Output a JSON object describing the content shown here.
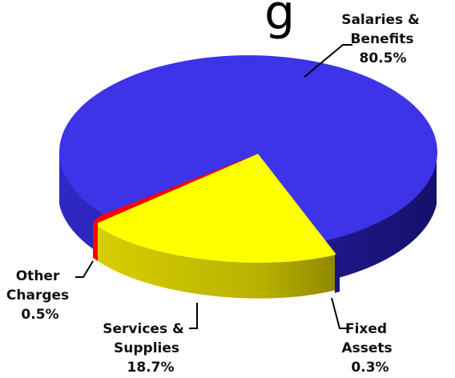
{
  "chart_data": {
    "type": "pie",
    "title": "",
    "slices": [
      {
        "label_lines": [
          "Salaries &",
          "Benefits"
        ],
        "value_label": "80.5%",
        "value": 80.5,
        "color": "#3d33e8",
        "side_color": "#221b96"
      },
      {
        "label_lines": [
          "Fixed",
          "Assets"
        ],
        "value_label": "0.3%",
        "value": 0.3,
        "color": "#2a22b0",
        "side_color": "#1a1480"
      },
      {
        "label_lines": [
          "Services &",
          "Supplies"
        ],
        "value_label": "18.7%",
        "value": 18.7,
        "color": "#ffff00",
        "side_color": "#b8b000"
      },
      {
        "label_lines": [
          "Other",
          "Charges"
        ],
        "value_label": "0.5%",
        "value": 0.5,
        "color": "#ff0000",
        "side_color": "#b00000"
      }
    ],
    "legend": "none",
    "style": "3d-exploded"
  }
}
